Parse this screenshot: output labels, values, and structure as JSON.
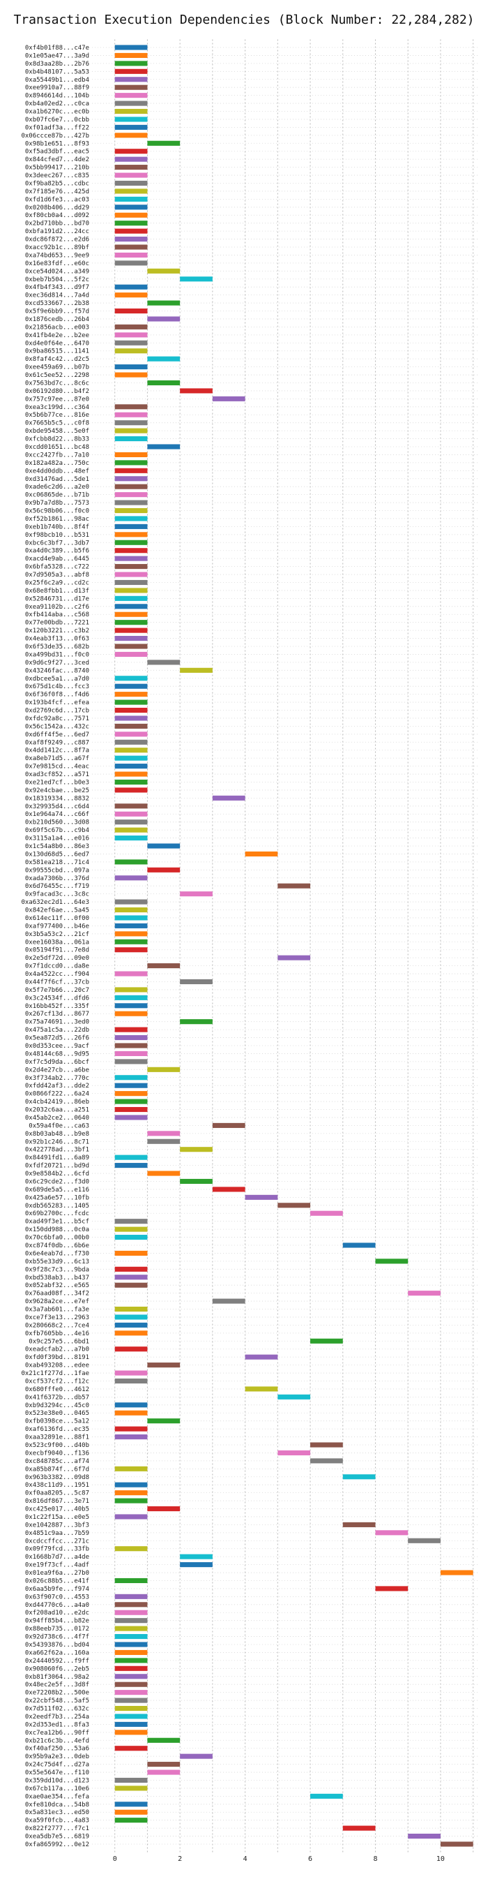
{
  "chart_data": {
    "type": "bar",
    "orientation": "horizontal-gantt",
    "title": "Transaction Execution Dependencies (Block Number: 22,284,282)",
    "xlim": [
      -0.7,
      11.2
    ],
    "xticks": [
      0,
      2,
      4,
      6,
      8,
      10
    ],
    "grid": true,
    "colors": [
      "#1f77b4",
      "#ff7f0e",
      "#2ca02c",
      "#d62728",
      "#9467bd",
      "#8c564b",
      "#e377c2",
      "#7f7f7f",
      "#bcbd22",
      "#17becf"
    ],
    "transactions": [
      {
        "tx": "0xf4b01f88...c47e",
        "start": 0
      },
      {
        "tx": "0x1e05ae47...3a9d",
        "start": 0
      },
      {
        "tx": "0x8d3aa28b...2b76",
        "start": 0
      },
      {
        "tx": "0xb4b48107...5a53",
        "start": 0
      },
      {
        "tx": "0xa55449b1...edb4",
        "start": 0
      },
      {
        "tx": "0xee9910a7...88f9",
        "start": 0
      },
      {
        "tx": "0x8946614d...104b",
        "start": 0
      },
      {
        "tx": "0xb4a02ed2...c0ca",
        "start": 0
      },
      {
        "tx": "0xa1b6270c...ec0b",
        "start": 0
      },
      {
        "tx": "0xb07fc6e7...0cbb",
        "start": 0
      },
      {
        "tx": "0xf01adf3a...ff22",
        "start": 0
      },
      {
        "tx": "0x06ccce87b...427b",
        "start": 0
      },
      {
        "tx": "0x98b1e651...8f93",
        "start": 1
      },
      {
        "tx": "0xf5ad3dbf...eac5",
        "start": 0
      },
      {
        "tx": "0x844cfed7...4de2",
        "start": 0
      },
      {
        "tx": "0x5bb99417...210b",
        "start": 0
      },
      {
        "tx": "0x3deec267...c835",
        "start": 0
      },
      {
        "tx": "0xf9ba82b5...cdbc",
        "start": 0
      },
      {
        "tx": "0x7f185e76...425d",
        "start": 0
      },
      {
        "tx": "0xfd1d6fe3...ac03",
        "start": 0
      },
      {
        "tx": "0x0208b406...dd29",
        "start": 0
      },
      {
        "tx": "0xf80cb0a4...d092",
        "start": 0
      },
      {
        "tx": "0x2bd710bb...bd70",
        "start": 0
      },
      {
        "tx": "0xbfa191d2...24cc",
        "start": 0
      },
      {
        "tx": "0xdc86f872...e2d6",
        "start": 0
      },
      {
        "tx": "0xacc92b1c...89bf",
        "start": 0
      },
      {
        "tx": "0xa74bd653...9ee9",
        "start": 0
      },
      {
        "tx": "0x16e83fdf...e60c",
        "start": 0
      },
      {
        "tx": "0xce54d024...a349",
        "start": 1
      },
      {
        "tx": "0xbeb7b504...5f2c",
        "start": 2
      },
      {
        "tx": "0x4fb4f343...d9f7",
        "start": 0
      },
      {
        "tx": "0xec36d814...7a4d",
        "start": 0
      },
      {
        "tx": "0xcd533667...2b38",
        "start": 1
      },
      {
        "tx": "0x5f9e6bb9...f57d",
        "start": 0
      },
      {
        "tx": "0x1876cedb...26b4",
        "start": 1
      },
      {
        "tx": "0x21856acb...e003",
        "start": 0
      },
      {
        "tx": "0x41fb4e2e...b2ee",
        "start": 0
      },
      {
        "tx": "0xd4e0f64e...6470",
        "start": 0
      },
      {
        "tx": "0x9ba86515...1141",
        "start": 0
      },
      {
        "tx": "0x8faf4c42...d2c5",
        "start": 1
      },
      {
        "tx": "0xee459a69...b07b",
        "start": 0
      },
      {
        "tx": "0x61c5ee52...2298",
        "start": 0
      },
      {
        "tx": "0x7563bd7c...8c6c",
        "start": 1
      },
      {
        "tx": "0x06192d80...b4f2",
        "start": 2
      },
      {
        "tx": "0x757c97ee...87e0",
        "start": 3
      },
      {
        "tx": "0xea3c199d...c364",
        "start": 0
      },
      {
        "tx": "0x5b6b77ce...816e",
        "start": 0
      },
      {
        "tx": "0x7665b5c5...c0f8",
        "start": 0
      },
      {
        "tx": "0xbde95458...5e0f",
        "start": 0
      },
      {
        "tx": "0xfcbb8d22...8b33",
        "start": 0
      },
      {
        "tx": "0xcdd01651...bc48",
        "start": 1
      },
      {
        "tx": "0xcc2427fb...7a10",
        "start": 0
      },
      {
        "tx": "0x182a482a...750c",
        "start": 0
      },
      {
        "tx": "0xe4dd0ddb...48ef",
        "start": 0
      },
      {
        "tx": "0xd31476ad...5de1",
        "start": 0
      },
      {
        "tx": "0xade6c2d6...a2e0",
        "start": 0
      },
      {
        "tx": "0xc06865de...b71b",
        "start": 0
      },
      {
        "tx": "0x9b7a7d8b...7573",
        "start": 0
      },
      {
        "tx": "0x56c98b06...f0c0",
        "start": 0
      },
      {
        "tx": "0xf52b1861...98ac",
        "start": 0
      },
      {
        "tx": "0xeb1b740b...8f4f",
        "start": 0
      },
      {
        "tx": "0xf98bcb10...b531",
        "start": 0
      },
      {
        "tx": "0xbc6c3bf7...3db7",
        "start": 0
      },
      {
        "tx": "0xa4d0c389...b5f6",
        "start": 0
      },
      {
        "tx": "0xacd4e9ab...6445",
        "start": 0
      },
      {
        "tx": "0x6bfa5328...c722",
        "start": 0
      },
      {
        "tx": "0x7d9505a3...abf8",
        "start": 0
      },
      {
        "tx": "0x25f6c2a9...cd2c",
        "start": 0
      },
      {
        "tx": "0x68e8fbb1...d13f",
        "start": 0
      },
      {
        "tx": "0x52846731...d17e",
        "start": 0
      },
      {
        "tx": "0xea91102b...c2f6",
        "start": 0
      },
      {
        "tx": "0xfb414aba...c568",
        "start": 0
      },
      {
        "tx": "0x77e00bdb...7221",
        "start": 0
      },
      {
        "tx": "0x120b3221...c3b2",
        "start": 0
      },
      {
        "tx": "0x4eab3f13...0f63",
        "start": 0
      },
      {
        "tx": "0x6f53de35...682b",
        "start": 0
      },
      {
        "tx": "0xa499bd31...f0c0",
        "start": 0
      },
      {
        "tx": "0x9d6c9f27...3ced",
        "start": 1
      },
      {
        "tx": "0x43246fac...8740",
        "start": 2
      },
      {
        "tx": "0xdbcee5a1...a7d0",
        "start": 0
      },
      {
        "tx": "0x675d1c4b...fcc3",
        "start": 0
      },
      {
        "tx": "0x6f36f0f8...f4d6",
        "start": 0
      },
      {
        "tx": "0x193b4fcf...efea",
        "start": 0
      },
      {
        "tx": "0xd2769c6d...17cb",
        "start": 0
      },
      {
        "tx": "0xfdc92a8c...7571",
        "start": 0
      },
      {
        "tx": "0x56c1542a...432c",
        "start": 0
      },
      {
        "tx": "0xd6ff4f5e...6ed7",
        "start": 0
      },
      {
        "tx": "0xaf8f9249...c887",
        "start": 0
      },
      {
        "tx": "0x4dd1412c...8f7a",
        "start": 0
      },
      {
        "tx": "0xa8eb71d5...a67f",
        "start": 0
      },
      {
        "tx": "0x7e9815cd...4eac",
        "start": 0
      },
      {
        "tx": "0xad3cf852...a571",
        "start": 0
      },
      {
        "tx": "0xe21ed7cf...b0e3",
        "start": 0
      },
      {
        "tx": "0x92e4cbae...be25",
        "start": 0
      },
      {
        "tx": "0x18319334...8832",
        "start": 3
      },
      {
        "tx": "0x329935d4...c6d4",
        "start": 0
      },
      {
        "tx": "0x1e964a74...c66f",
        "start": 0
      },
      {
        "tx": "0xb210d560...3d08",
        "start": 0
      },
      {
        "tx": "0x69f5c67b...c9b4",
        "start": 0
      },
      {
        "tx": "0x3115a1a4...e016",
        "start": 0
      },
      {
        "tx": "0x1c54a8b0...86e3",
        "start": 1
      },
      {
        "tx": "0x130d68d5...6ed7",
        "start": 4
      },
      {
        "tx": "0x581ea218...71c4",
        "start": 0
      },
      {
        "tx": "0x99555cbd...097a",
        "start": 1
      },
      {
        "tx": "0xada7306b...376d",
        "start": 0
      },
      {
        "tx": "0x6d76455c...f719",
        "start": 5
      },
      {
        "tx": "0x9facad3c...3c8c",
        "start": 2
      },
      {
        "tx": "0xa632ec2d1...64e3",
        "start": 0
      },
      {
        "tx": "0x842ef6ae...5a45",
        "start": 0
      },
      {
        "tx": "0x614ec11f...0f00",
        "start": 0
      },
      {
        "tx": "0xaf977400...b46e",
        "start": 0
      },
      {
        "tx": "0x3b5a53c2...21cf",
        "start": 0
      },
      {
        "tx": "0xee16038a...061a",
        "start": 0
      },
      {
        "tx": "0x05194f91...7e8d",
        "start": 0
      },
      {
        "tx": "0x2e5df72d...09e0",
        "start": 5
      },
      {
        "tx": "0x7f1dccd0...da8e",
        "start": 1
      },
      {
        "tx": "0x4a4522cc...f904",
        "start": 0
      },
      {
        "tx": "0x44f7f6cf...37cb",
        "start": 2
      },
      {
        "tx": "0x5f7e7b66...20c7",
        "start": 0
      },
      {
        "tx": "0x3c24534f...dfd6",
        "start": 0
      },
      {
        "tx": "0x16bb452f...335f",
        "start": 0
      },
      {
        "tx": "0x267cf13d...8677",
        "start": 0
      },
      {
        "tx": "0x75a74691...3ed0",
        "start": 2
      },
      {
        "tx": "0x475a1c5a...22db",
        "start": 0
      },
      {
        "tx": "0x5ea872d5...26f6",
        "start": 0
      },
      {
        "tx": "0x0d353cee...9acf",
        "start": 0
      },
      {
        "tx": "0x48144c68...9d95",
        "start": 0
      },
      {
        "tx": "0xf7c5d9da...6bcf",
        "start": 0
      },
      {
        "tx": "0x2d4e27cb...a6be",
        "start": 1
      },
      {
        "tx": "0x3f734ab2...770c",
        "start": 0
      },
      {
        "tx": "0xfdd42af3...dde2",
        "start": 0
      },
      {
        "tx": "0x0866f222...6a24",
        "start": 0
      },
      {
        "tx": "0x4cb42419...86eb",
        "start": 0
      },
      {
        "tx": "0x2032c6aa...a251",
        "start": 0
      },
      {
        "tx": "0x45ab2ce2...0640",
        "start": 0
      },
      {
        "tx": "0x59a4f0e...ca63",
        "start": 3
      },
      {
        "tx": "0x8b03ab48...b9e8",
        "start": 1
      },
      {
        "tx": "0x92b1c246...8c71",
        "start": 1
      },
      {
        "tx": "0x422778ad...3bf1",
        "start": 2
      },
      {
        "tx": "0x84491fd1...6a89",
        "start": 0
      },
      {
        "tx": "0xfdf20721...bd9d",
        "start": 0
      },
      {
        "tx": "0x9e8584b2...6cfd",
        "start": 1
      },
      {
        "tx": "0x6c29cde2...f3d0",
        "start": 2
      },
      {
        "tx": "0x689de5a5...e116",
        "start": 3
      },
      {
        "tx": "0x425a6e57...10fb",
        "start": 4
      },
      {
        "tx": "0xdb565283...1405",
        "start": 5
      },
      {
        "tx": "0x69b2700c...fcdc",
        "start": 6
      },
      {
        "tx": "0xad49f3e1...b5cf",
        "start": 0
      },
      {
        "tx": "0x150dd988...0c0a",
        "start": 0
      },
      {
        "tx": "0x70c6bfa0...00b0",
        "start": 0
      },
      {
        "tx": "0xc874f0db...6b6e",
        "start": 7
      },
      {
        "tx": "0x6e4eab7d...f730",
        "start": 0
      },
      {
        "tx": "0xb55e33d9...6c13",
        "start": 8
      },
      {
        "tx": "0x9f28c7c3...9bda",
        "start": 0
      },
      {
        "tx": "0xbd538ab3...b437",
        "start": 0
      },
      {
        "tx": "0x052abf32...e565",
        "start": 0
      },
      {
        "tx": "0x76aad08f...34f2",
        "start": 9
      },
      {
        "tx": "0x9628a2ce...e7ef",
        "start": 3
      },
      {
        "tx": "0x3a7ab601...fa3e",
        "start": 0
      },
      {
        "tx": "0xce7f3e13...2963",
        "start": 0
      },
      {
        "tx": "0x280668c2...7ce4",
        "start": 0
      },
      {
        "tx": "0xfb7605bb...4e16",
        "start": 0
      },
      {
        "tx": "0x9c257e5...6bd1",
        "start": 6
      },
      {
        "tx": "0xeadcfab2...a7b0",
        "start": 0
      },
      {
        "tx": "0xfd0f39bd...8191",
        "start": 4
      },
      {
        "tx": "0xab493208...edee",
        "start": 1
      },
      {
        "tx": "0x21c1f277d...1fae",
        "start": 0
      },
      {
        "tx": "0xcf537cf2...f12c",
        "start": 0
      },
      {
        "tx": "0x680fffe0...4612",
        "start": 4
      },
      {
        "tx": "0x41f6372b...db57",
        "start": 5
      },
      {
        "tx": "0xb9d3294c...45c0",
        "start": 0
      },
      {
        "tx": "0x523e38e0...0465",
        "start": 0
      },
      {
        "tx": "0xfb0398ce...5a12",
        "start": 1
      },
      {
        "tx": "0xaf6136fd...ec35",
        "start": 0
      },
      {
        "tx": "0xaa32891e...88f1",
        "start": 0
      },
      {
        "tx": "0x523c9f00...d40b",
        "start": 6
      },
      {
        "tx": "0xecbf9040...f136",
        "start": 5
      },
      {
        "tx": "0xc848785c...af74",
        "start": 6
      },
      {
        "tx": "0xa85b874f...6f7d",
        "start": 0
      },
      {
        "tx": "0x963b3382...09d8",
        "start": 7
      },
      {
        "tx": "0x438c11d9...1951",
        "start": 0
      },
      {
        "tx": "0xf0aa8205...5c87",
        "start": 0
      },
      {
        "tx": "0x816df867...3e71",
        "start": 0
      },
      {
        "tx": "0xc425e017...40b5",
        "start": 1
      },
      {
        "tx": "0x1c22f15a...e0e5",
        "start": 0
      },
      {
        "tx": "0xe1042887...3bf3",
        "start": 7
      },
      {
        "tx": "0x4851c9aa...7b59",
        "start": 8
      },
      {
        "tx": "0xcdccffcc...271c",
        "start": 9
      },
      {
        "tx": "0x09f79fcd...33fb",
        "start": 0
      },
      {
        "tx": "0x1668b7d7...a4de",
        "start": 2
      },
      {
        "tx": "0xe19f73cf...4adf",
        "start": 2
      },
      {
        "tx": "0x01ea9f6a...27b0",
        "start": 10
      },
      {
        "tx": "0x026c88b5...e41f",
        "start": 0
      },
      {
        "tx": "0x6aa5b9fe...f974",
        "start": 8
      },
      {
        "tx": "0x63f907c0...4553",
        "start": 0
      },
      {
        "tx": "0xd44770c6...a4a0",
        "start": 0
      },
      {
        "tx": "0xf208ad10...e2dc",
        "start": 0
      },
      {
        "tx": "0x94ff85b4...b82e",
        "start": 0
      },
      {
        "tx": "0x88eeb735...0172",
        "start": 0
      },
      {
        "tx": "0x92d738c6...4f7f",
        "start": 0
      },
      {
        "tx": "0x54393876...bd04",
        "start": 0
      },
      {
        "tx": "0xa662f62a...160a",
        "start": 0
      },
      {
        "tx": "0x24440592...f9ff",
        "start": 0
      },
      {
        "tx": "0x908060f6...2eb5",
        "start": 0
      },
      {
        "tx": "0xb81f3064...98a2",
        "start": 0
      },
      {
        "tx": "0x48ec2e5f...3d8f",
        "start": 0
      },
      {
        "tx": "0xe72208b2...500e",
        "start": 0
      },
      {
        "tx": "0x22cbf548...5af5",
        "start": 0
      },
      {
        "tx": "0x7d511f02...632c",
        "start": 0
      },
      {
        "tx": "0x2eedf7b3...254a",
        "start": 0
      },
      {
        "tx": "0x2d353ed1...8fa3",
        "start": 0
      },
      {
        "tx": "0xc7ea12b6...90ff",
        "start": 0
      },
      {
        "tx": "0xb21c6c3b...4efd",
        "start": 1
      },
      {
        "tx": "0xf40af250...53a6",
        "start": 0
      },
      {
        "tx": "0x95b9a2e3...0deb",
        "start": 2
      },
      {
        "tx": "0x24c75d4f...d27a",
        "start": 1
      },
      {
        "tx": "0x55e5647e...f110",
        "start": 1
      },
      {
        "tx": "0x359dd10d...d123",
        "start": 0
      },
      {
        "tx": "0x67cb117a...10e6",
        "start": 0
      },
      {
        "tx": "0xae0ae354...fefa",
        "start": 6
      },
      {
        "tx": "0xfe810dca...54b8",
        "start": 0
      },
      {
        "tx": "0x5a831ec3...ed50",
        "start": 0
      },
      {
        "tx": "0xa59f0fcb...4a83",
        "start": 0
      },
      {
        "tx": "0x822f2777...f7c1",
        "start": 7
      },
      {
        "tx": "0xea5db7e5...6819",
        "start": 9
      },
      {
        "tx": "0xfa865992...0e12",
        "start": 10
      }
    ]
  }
}
